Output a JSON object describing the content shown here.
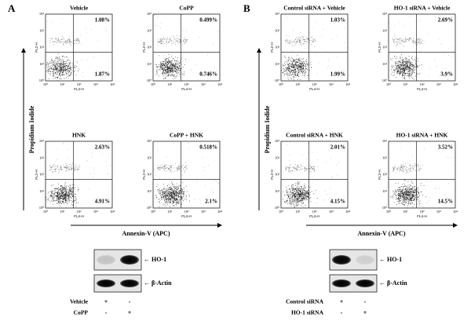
{
  "axis_ticks": [
    "10⁰",
    "10¹",
    "10²",
    "10³",
    "10⁴"
  ],
  "plot_x_label": "FL4-H",
  "plot_y_label": "FL2-H",
  "panels": [
    {
      "label": "A",
      "y_axis": "Propidium Iodide",
      "x_axis": "Annexin-V (APC)",
      "plots": [
        {
          "title": "Vehicle",
          "upper_right": "1.08%",
          "lower_right": "1.87%"
        },
        {
          "title": "CoPP",
          "upper_right": "0.499%",
          "lower_right": "0.746%"
        },
        {
          "title": "HNK",
          "upper_right": "2.63%",
          "lower_right": "4.91%"
        },
        {
          "title": "CoPP + HNK",
          "upper_right": "0.518%",
          "lower_right": "2.1%"
        }
      ],
      "blot": {
        "bands": [
          "← HO-1",
          "← β-Actin"
        ],
        "rows": [
          {
            "label": "Vehicle",
            "signs": [
              "+",
              "-"
            ]
          },
          {
            "label": "CoPP",
            "signs": [
              "-",
              "+"
            ]
          }
        ]
      }
    },
    {
      "label": "B",
      "y_axis": "Propidium Iodide",
      "x_axis": "Annexin-V (APC)",
      "plots": [
        {
          "title": "Control siRNA + Vehicle",
          "upper_right": "1.03%",
          "lower_right": "1.99%"
        },
        {
          "title": "HO-1 siRNA + Vehicle",
          "upper_right": "2.69%",
          "lower_right": "3.9%"
        },
        {
          "title": "Control siRNA + HNK",
          "upper_right": "2.01%",
          "lower_right": "4.15%"
        },
        {
          "title": "HO-1 siRNA + HNK",
          "upper_right": "3.52%",
          "lower_right": "14.5%"
        }
      ],
      "blot": {
        "bands": [
          "← HO-1",
          "← β-Actin"
        ],
        "rows": [
          {
            "label": "Control siRNA",
            "signs": [
              "+",
              "-"
            ]
          },
          {
            "label": "HO-1 siRNA",
            "signs": [
              "-",
              "+"
            ]
          }
        ]
      }
    }
  ]
}
